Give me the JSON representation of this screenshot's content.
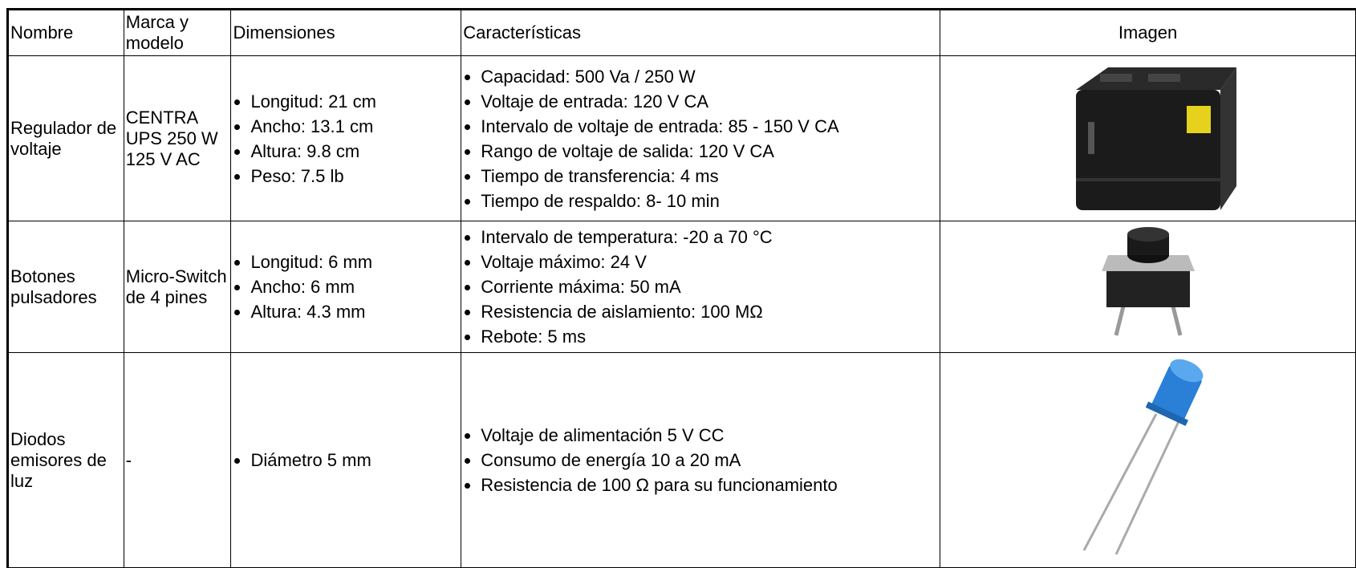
{
  "table": {
    "header": [
      "Nombre",
      "Marca y modelo",
      "Dimensiones",
      "Características",
      "Imagen"
    ],
    "rows": [
      {
        "nombre": "Regulador de voltaje",
        "marca": "CENTRA UPS 250 W 125 V AC",
        "dimensiones": [
          "Longitud: 21 cm",
          "Ancho: 13.1 cm",
          "Altura: 9.8 cm",
          "Peso: 7.5 lb"
        ],
        "caracteristicas": [
          "Capacidad: 500 Va / 250 W",
          "Voltaje de entrada: 120 V CA",
          "Intervalo de voltaje de entrada: 85 - 150 V CA",
          "Rango de voltaje de salida: 120 V CA",
          "Tiempo de transferencia: 4 ms",
          "Tiempo de respaldo: 8- 10 min"
        ]
      },
      {
        "nombre": "Botones pulsadores",
        "marca": "Micro-Switch de 4 pines",
        "dimensiones": [
          "Longitud: 6 mm",
          "Ancho: 6 mm",
          "Altura: 4.3 mm"
        ],
        "caracteristicas": [
          "Intervalo de temperatura: -20 a 70 °C",
          "Voltaje máximo: 24 V",
          "Corriente máxima: 50 mA",
          "Resistencia de aislamiento: 100 MΩ",
          "Rebote: 5 ms"
        ]
      },
      {
        "nombre": "Diodos emisores de luz",
        "marca": "-",
        "dimensiones": [
          "Diámetro 5 mm"
        ],
        "caracteristicas": [
          "Voltaje de alimentación 5 V CC",
          "Consumo de energía 10 a 20 mA",
          "Resistencia de 100 Ω para su funcionamiento"
        ]
      }
    ]
  }
}
